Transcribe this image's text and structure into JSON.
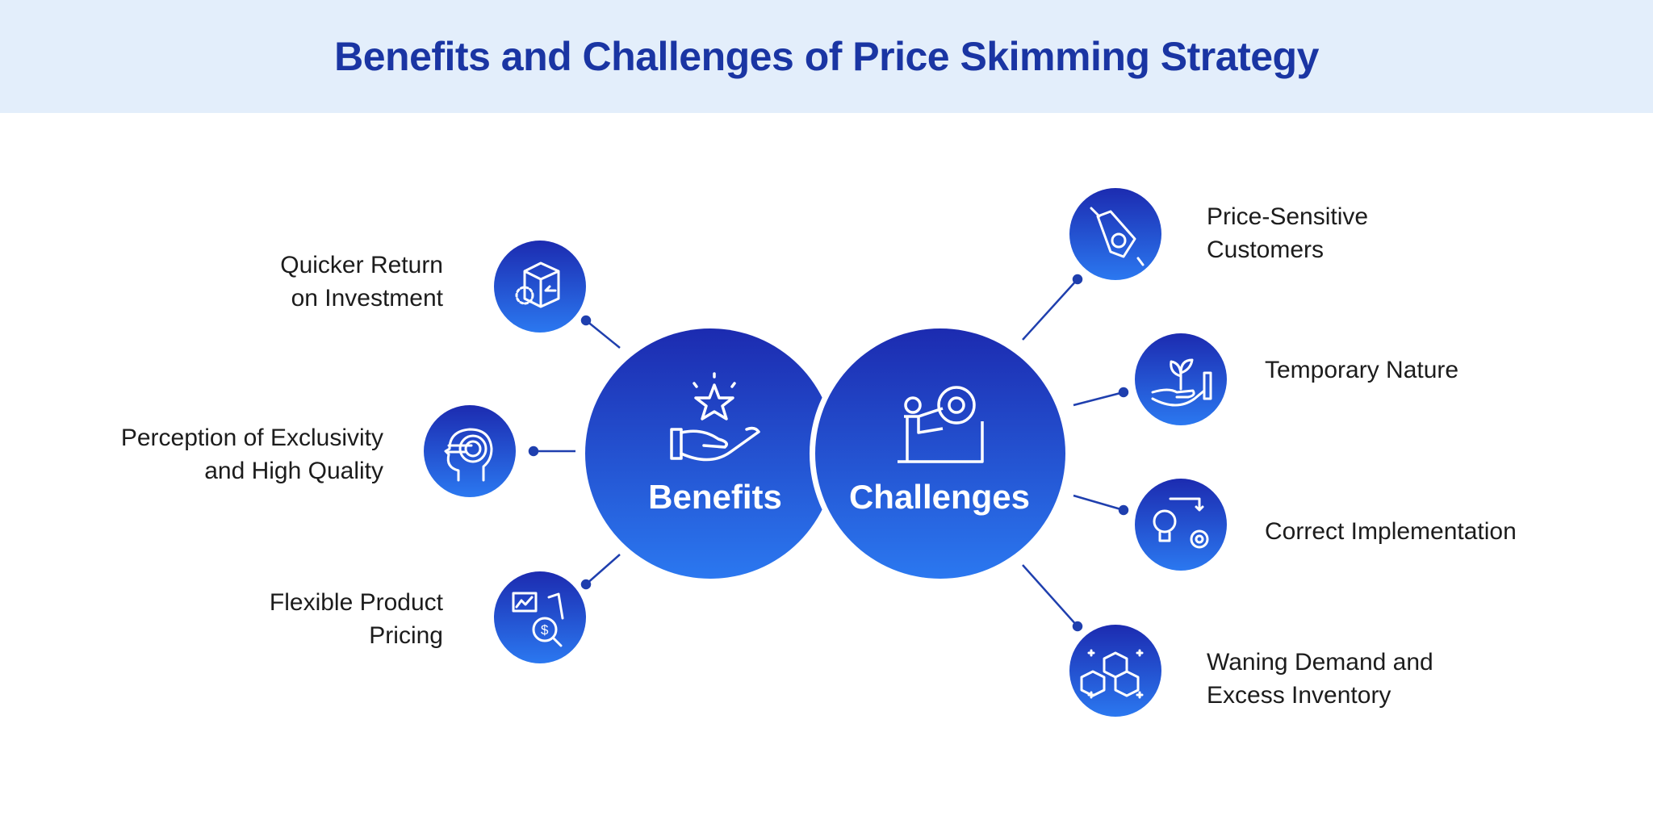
{
  "title": "Benefits and Challenges of Price Skimming Strategy",
  "colors": {
    "header_bg": "#e3eefb",
    "title": "#1a35a3",
    "circle_top": "#1c2bb0",
    "circle_bottom": "#2b78f0",
    "connector": "#1f3fae"
  },
  "hubs": {
    "benefits": {
      "label": "Benefits",
      "icon": "hand-star-icon"
    },
    "challenges": {
      "label": "Challenges",
      "icon": "person-gear-climb-icon"
    }
  },
  "benefits": [
    {
      "line1": "Quicker Return",
      "line2": "on Investment",
      "icon": "box-return-icon"
    },
    {
      "line1": "Perception of Exclusivity",
      "line2": "and High Quality",
      "icon": "head-target-icon"
    },
    {
      "line1": "Flexible Product",
      "line2": "Pricing",
      "icon": "price-analysis-icon"
    }
  ],
  "challenges": [
    {
      "line1": "Price-Sensitive",
      "line2": "Customers",
      "icon": "price-tag-cut-icon"
    },
    {
      "line1": "Temporary Nature",
      "line2": "",
      "icon": "plant-hand-icon"
    },
    {
      "line1": "Correct Implementation",
      "line2": "",
      "icon": "bulb-gear-icon"
    },
    {
      "line1": "Waning Demand and",
      "line2": "Excess Inventory",
      "icon": "stacked-boxes-icon"
    }
  ]
}
